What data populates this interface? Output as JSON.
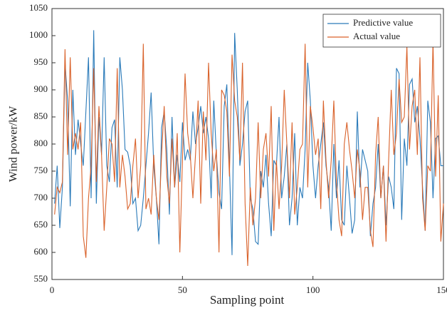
{
  "chart_data": {
    "type": "line",
    "xlabel": "Sampling point",
    "ylabel": "Wind power/kW",
    "xlim": [
      0,
      150
    ],
    "xticks": [
      0,
      50,
      100,
      150
    ],
    "ylim": [
      550,
      1050
    ],
    "yticks": [
      550,
      600,
      650,
      700,
      750,
      800,
      850,
      900,
      950,
      1000,
      1050
    ],
    "legend": "upper right",
    "grid": false,
    "x": [
      1,
      2,
      3,
      4,
      5,
      6,
      7,
      8,
      9,
      10,
      11,
      12,
      13,
      14,
      15,
      16,
      17,
      18,
      19,
      20,
      21,
      22,
      23,
      24,
      25,
      26,
      27,
      28,
      29,
      30,
      31,
      32,
      33,
      34,
      35,
      36,
      37,
      38,
      39,
      40,
      41,
      42,
      43,
      44,
      45,
      46,
      47,
      48,
      49,
      50,
      51,
      52,
      53,
      54,
      55,
      56,
      57,
      58,
      59,
      60,
      61,
      62,
      63,
      64,
      65,
      66,
      67,
      68,
      69,
      70,
      71,
      72,
      73,
      74,
      75,
      76,
      77,
      78,
      79,
      80,
      81,
      82,
      83,
      84,
      85,
      86,
      87,
      88,
      89,
      90,
      91,
      92,
      93,
      94,
      95,
      96,
      97,
      98,
      99,
      100,
      101,
      102,
      103,
      104,
      105,
      106,
      107,
      108,
      109,
      110,
      111,
      112,
      113,
      114,
      115,
      116,
      117,
      118,
      119,
      120,
      121,
      122,
      123,
      124,
      125,
      126,
      127,
      128,
      129,
      130,
      131,
      132,
      133,
      134,
      135,
      136,
      137,
      138,
      139,
      140,
      141,
      142,
      143,
      144,
      145,
      146,
      147,
      148,
      149,
      150
    ],
    "series": [
      {
        "name": "Predictive value",
        "color": "#2a7ab9",
        "values": [
          690,
          760,
          645,
          720,
          950,
          880,
          685,
          900,
          780,
          845,
          800,
          760,
          860,
          960,
          700,
          1010,
          690,
          850,
          780,
          960,
          760,
          730,
          830,
          845,
          720,
          960,
          900,
          790,
          785,
          760,
          690,
          700,
          640,
          650,
          700,
          760,
          820,
          895,
          760,
          700,
          615,
          830,
          860,
          790,
          670,
          850,
          720,
          780,
          730,
          840,
          770,
          790,
          770,
          860,
          800,
          830,
          870,
          820,
          850,
          810,
          700,
          880,
          780,
          710,
          680,
          870,
          910,
          760,
          595,
          1005,
          900,
          760,
          800,
          860,
          880,
          700,
          680,
          620,
          615,
          750,
          720,
          780,
          690,
          630,
          770,
          760,
          850,
          700,
          740,
          800,
          650,
          700,
          820,
          650,
          720,
          700,
          790,
          950,
          880,
          760,
          700,
          760,
          800,
          840,
          760,
          720,
          640,
          800,
          700,
          770,
          660,
          650,
          760,
          700,
          635,
          660,
          860,
          720,
          790,
          770,
          750,
          630,
          690,
          720,
          800,
          700,
          760,
          650,
          740,
          720,
          680,
          940,
          930,
          660,
          810,
          760,
          910,
          920,
          840,
          870,
          810,
          720,
          640,
          880,
          840,
          700,
          810,
          815,
          760,
          760
        ]
      },
      {
        "name": "Actual value",
        "color": "#d9622b",
        "values": [
          670,
          720,
          710,
          730,
          975,
          780,
          960,
          790,
          820,
          790,
          840,
          630,
          590,
          700,
          760,
          940,
          730,
          870,
          780,
          640,
          720,
          810,
          800,
          730,
          940,
          720,
          780,
          740,
          680,
          690,
          760,
          810,
          700,
          760,
          985,
          680,
          700,
          670,
          780,
          700,
          660,
          780,
          870,
          740,
          690,
          810,
          720,
          820,
          600,
          770,
          930,
          820,
          780,
          700,
          780,
          880,
          690,
          860,
          770,
          950,
          820,
          750,
          790,
          600,
          900,
          890,
          860,
          740,
          965,
          880,
          850,
          770,
          950,
          690,
          575,
          720,
          650,
          700,
          840,
          700,
          790,
          820,
          740,
          870,
          640,
          770,
          680,
          760,
          900,
          800,
          700,
          840,
          670,
          720,
          790,
          800,
          985,
          720,
          870,
          830,
          780,
          810,
          680,
          880,
          770,
          700,
          770,
          880,
          730,
          660,
          630,
          800,
          840,
          790,
          750,
          700,
          790,
          750,
          660,
          720,
          720,
          640,
          610,
          780,
          850,
          700,
          760,
          620,
          770,
          900,
          780,
          820,
          920,
          840,
          850,
          980,
          790,
          870,
          900,
          780,
          960,
          700,
          640,
          760,
          750,
          990,
          740,
          890,
          620,
          690
        ]
      }
    ]
  }
}
